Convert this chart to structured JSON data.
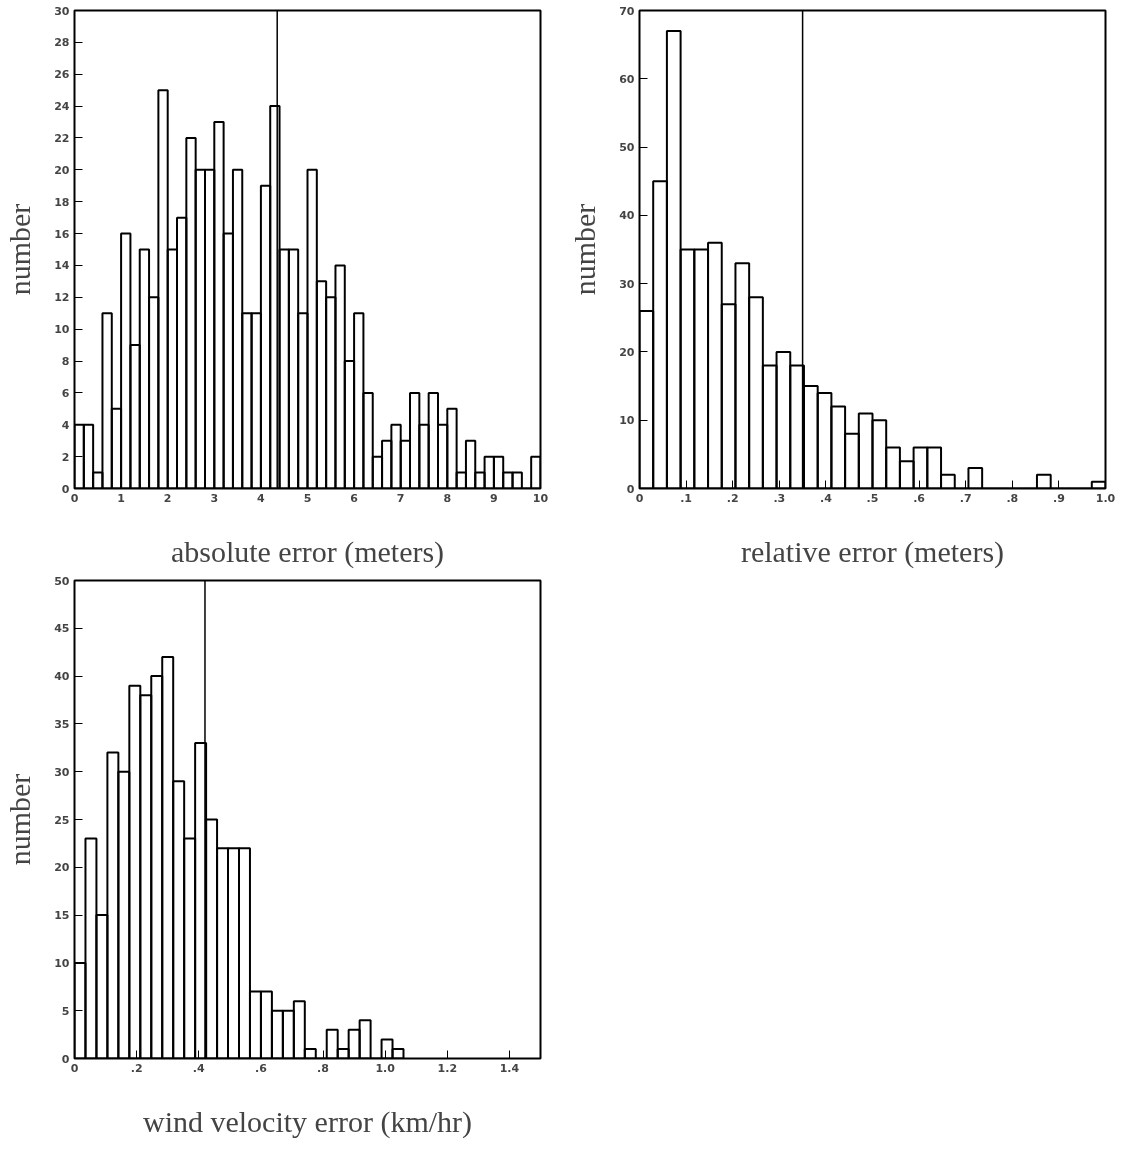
{
  "chart_data": [
    {
      "type": "histogram",
      "xlabel": "absolute error (meters)",
      "ylabel": "number",
      "color": "#000000",
      "grid": false,
      "bins": [
        0,
        0.2,
        0.4,
        0.6,
        0.8,
        1.0,
        1.2,
        1.4,
        1.6,
        1.8,
        2.0,
        2.2,
        2.4,
        2.6,
        2.8,
        3.0,
        3.2,
        3.4,
        3.6,
        3.8,
        4.0,
        4.2,
        4.4,
        4.6,
        4.8,
        5.0,
        5.2,
        5.4,
        5.6,
        5.8,
        6.0,
        6.2,
        6.4,
        6.6,
        6.8,
        7.0,
        7.2,
        7.4,
        7.6,
        7.8,
        8.0,
        8.2,
        8.4,
        8.6,
        8.8,
        9.0,
        9.2,
        9.4,
        9.6,
        9.8,
        10.0
      ],
      "values": [
        4,
        4,
        1,
        11,
        5,
        16,
        9,
        15,
        12,
        25,
        15,
        17,
        22,
        20,
        20,
        23,
        16,
        20,
        11,
        11,
        19,
        24,
        15,
        15,
        11,
        20,
        13,
        12,
        14,
        8,
        11,
        6,
        2,
        3,
        4,
        3,
        6,
        4,
        6,
        4,
        5,
        1,
        3,
        1,
        2,
        2,
        1,
        1,
        0,
        2
      ],
      "xlim": [
        0,
        10
      ],
      "ylim": [
        0,
        30
      ],
      "xticks": [
        0,
        1,
        2,
        3,
        4,
        5,
        6,
        7,
        8,
        9,
        10
      ],
      "yticks": [
        0,
        2,
        4,
        6,
        8,
        10,
        12,
        14,
        16,
        18,
        20,
        22,
        24,
        26,
        28,
        30
      ],
      "ref_lines": [
        {
          "axis": "x",
          "value": 4.35,
          "label": null
        }
      ]
    },
    {
      "type": "histogram",
      "xlabel": "relative error (meters)",
      "ylabel": "number",
      "color": "#000000",
      "grid": false,
      "bins": [
        0,
        0.0294,
        0.0588,
        0.0882,
        0.1176,
        0.1471,
        0.1765,
        0.2059,
        0.2353,
        0.2647,
        0.2941,
        0.3235,
        0.3529,
        0.3824,
        0.4118,
        0.4412,
        0.4706,
        0.5,
        0.5294,
        0.5588,
        0.5882,
        0.6176,
        0.6471,
        0.6765,
        0.7059,
        0.7353,
        0.7647,
        0.7941,
        0.8235,
        0.8529,
        0.8824,
        0.9118,
        0.9412,
        0.9706,
        1.0
      ],
      "values": [
        26,
        45,
        67,
        35,
        35,
        36,
        27,
        33,
        28,
        18,
        20,
        18,
        15,
        14,
        12,
        8,
        11,
        10,
        6,
        4,
        6,
        6,
        2,
        0,
        3,
        0,
        0,
        0,
        0,
        2,
        0,
        0,
        0,
        1
      ],
      "xlim": [
        0,
        1
      ],
      "ylim": [
        0,
        70
      ],
      "xticks": [
        0,
        {
          "value": 0.1,
          "label": ".1"
        },
        {
          "value": 0.2,
          "label": ".2"
        },
        {
          "value": 0.3,
          "label": ".3"
        },
        {
          "value": 0.4,
          "label": ".4"
        },
        {
          "value": 0.5,
          "label": ".5"
        },
        {
          "value": 0.6,
          "label": ".6"
        },
        {
          "value": 0.7,
          "label": ".7"
        },
        {
          "value": 0.8,
          "label": ".8"
        },
        {
          "value": 0.9,
          "label": ".9"
        },
        {
          "value": 1,
          "label": "1.0"
        }
      ],
      "yticks": [
        0,
        10,
        20,
        30,
        40,
        50,
        60,
        70
      ],
      "ref_lines": [
        {
          "axis": "x",
          "value": 0.35,
          "label": null
        }
      ]
    },
    {
      "type": "histogram",
      "xlabel": "wind velocity error (km/hr)",
      "ylabel": "number",
      "color": "#000000",
      "grid": false,
      "bins": [
        0,
        0.0353,
        0.0706,
        0.1059,
        0.1412,
        0.1765,
        0.2118,
        0.2471,
        0.2824,
        0.3177,
        0.353,
        0.3883,
        0.4236,
        0.4589,
        0.4942,
        0.5295,
        0.5648,
        0.6001,
        0.6354,
        0.6707,
        0.706,
        0.7413,
        0.7766,
        0.8119,
        0.8472,
        0.8825,
        0.9178,
        0.9531,
        0.9884,
        1.0237,
        1.059
      ],
      "values": [
        10,
        23,
        15,
        32,
        30,
        39,
        38,
        40,
        42,
        29,
        23,
        33,
        25,
        22,
        22,
        22,
        7,
        7,
        5,
        5,
        6,
        1,
        0,
        3,
        1,
        3,
        4,
        0,
        2,
        1
      ],
      "xlim": [
        0,
        1.5
      ],
      "ylim": [
        0,
        50
      ],
      "xticks": [
        0,
        {
          "value": 0.2,
          "label": ".2"
        },
        {
          "value": 0.4,
          "label": ".4"
        },
        {
          "value": 0.6,
          "label": ".6"
        },
        {
          "value": 0.8,
          "label": ".8"
        },
        {
          "value": 1.0,
          "label": "1.0"
        },
        {
          "value": 1.2,
          "label": "1.2"
        },
        {
          "value": 1.4,
          "label": "1.4"
        }
      ],
      "yticks": [
        0,
        5,
        10,
        15,
        20,
        25,
        30,
        35,
        40,
        45,
        50
      ],
      "ref_lines": [
        {
          "axis": "x",
          "value": 0.42,
          "label": null
        }
      ]
    }
  ]
}
